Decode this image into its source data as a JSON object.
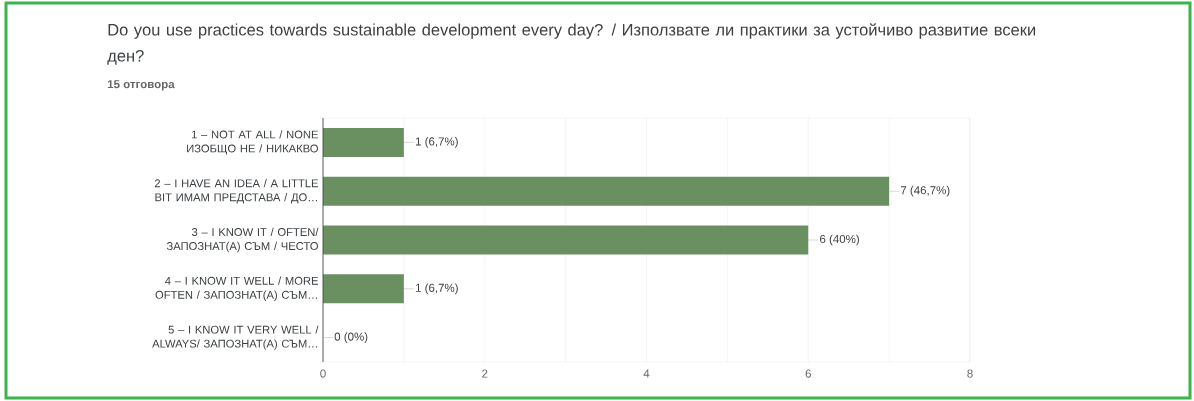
{
  "chart_data": {
    "type": "bar",
    "orientation": "horizontal",
    "title": "Do you use practices towards sustainable development every day? / Използвате ли практики за устойчиво развитие всеки ден?",
    "subtitle": "15 отговора",
    "categories": [
      "1 – NOT AT ALL / NONE ИЗОБЩО НЕ / НИКАКВО",
      "2 – I HAVE AN IDEA / A LITTLE BIT ИМАМ ПРЕДСТАВА / ДО…",
      "3 – I KNOW IT / OFTEN/ ЗАПОЗНАТ(А) СЪМ / ЧЕСТО",
      "4 – I KNOW IT WELL / MORE OFTEN / ЗАПОЗНАТ(А) СЪМ…",
      "5 – I KNOW IT VERY WELL / ALWAYS/ ЗАПОЗНАТ(А) СЪМ…"
    ],
    "values": [
      1,
      7,
      6,
      1,
      0
    ],
    "value_labels": [
      "1 (6,7%)",
      "7 (46,7%)",
      "6 (40%)",
      "1 (6,7%)",
      "0 (0%)"
    ],
    "color": "#6a8f61",
    "xlim": [
      0,
      8
    ],
    "xticks": [
      0,
      {
        "value": 1,
        "label": null
      },
      2,
      {
        "value": 3,
        "label": null
      },
      4,
      {
        "value": 5,
        "label": null
      },
      6,
      {
        "value": 7,
        "label": null
      },
      8
    ],
    "grid": "x"
  }
}
